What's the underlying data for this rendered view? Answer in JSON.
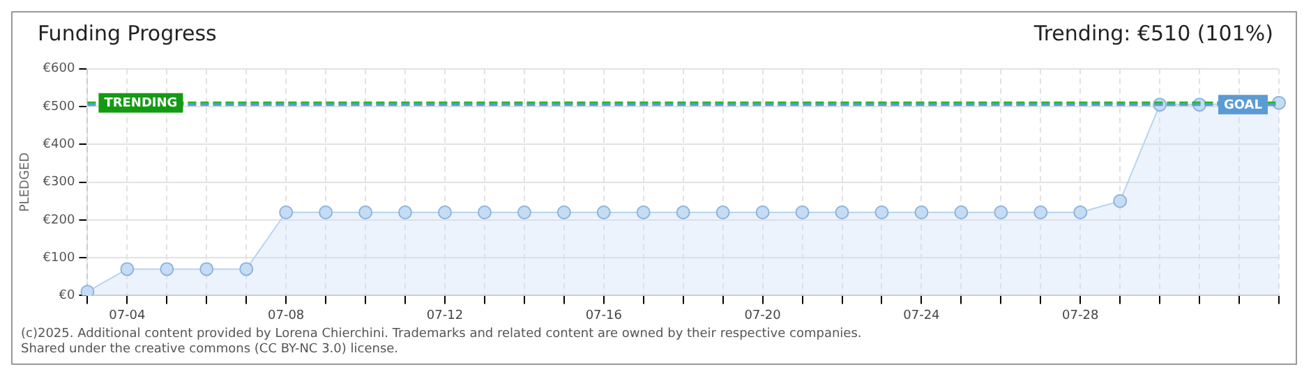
{
  "chart_data": {
    "type": "area",
    "title": "Funding Progress",
    "subtitle": "Trending: €510 (101%)",
    "ylabel": "PLEDGED",
    "categories": [
      null,
      "07-04",
      null,
      null,
      null,
      "07-08",
      null,
      null,
      null,
      "07-12",
      null,
      null,
      null,
      "07-16",
      null,
      null,
      null,
      "07-20",
      null,
      null,
      null,
      "07-24",
      null,
      null,
      null,
      "07-28",
      null,
      null,
      null,
      null,
      null
    ],
    "series": [
      {
        "color": "#b8d4f0",
        "values": [
          10,
          70,
          70,
          70,
          70,
          220,
          220,
          220,
          220,
          220,
          220,
          220,
          220,
          220,
          220,
          220,
          220,
          220,
          220,
          220,
          220,
          220,
          220,
          220,
          220,
          220,
          250,
          505,
          505,
          null,
          510
        ]
      }
    ],
    "ylim": [
      0,
      600
    ],
    "yticks": [
      {
        "value": 0,
        "label": "€0"
      },
      {
        "value": 100,
        "label": "€100"
      },
      {
        "value": 200,
        "label": "€200"
      },
      {
        "value": 300,
        "label": "€300"
      },
      {
        "value": 400,
        "label": "€400"
      },
      {
        "value": 500,
        "label": "€500"
      },
      {
        "value": 600,
        "label": "€600"
      }
    ],
    "ref_lines": [
      {
        "axis": "y",
        "value": 510,
        "label": "TRENDING",
        "color": "#22bb22",
        "line_style": "dashed"
      },
      {
        "axis": "y",
        "value": 505,
        "label": "GOAL",
        "color": "#5b9bd5",
        "line_style": "dashed"
      }
    ],
    "annotations": [
      "(c)2025. Additional content provided by Lorena Chierchini. Trademarks and related content are owned by their respective companies.",
      "Shared under the creative commons (CC BY-NC 3.0) license."
    ],
    "grid": true,
    "legend": false,
    "marker": "circle",
    "line_style": "solid"
  }
}
